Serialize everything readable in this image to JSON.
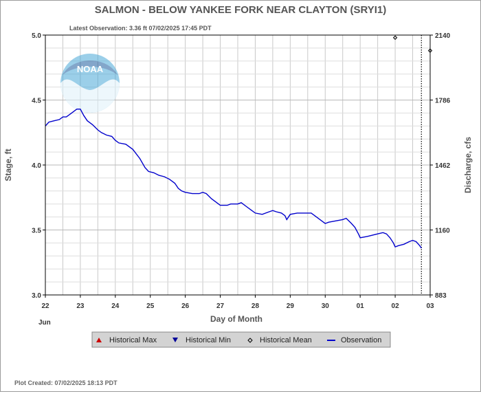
{
  "chart_data": {
    "type": "line",
    "title": "SALMON - BELOW YANKEE FORK NEAR CLAYTON  (SRYI1)",
    "subtitle": "Latest Observation: 3.36 ft 07/02/2025 17:45 PDT",
    "xlabel": "Day of Month",
    "ylabel": "Stage, ft",
    "y2label": "Discharge, cfs",
    "month_label": "Jun",
    "x_ticks": [
      "22",
      "23",
      "24",
      "25",
      "26",
      "27",
      "28",
      "29",
      "30",
      "01",
      "02",
      "03"
    ],
    "xlim_days": [
      0,
      11
    ],
    "ylim": [
      3.0,
      5.0
    ],
    "y_ticks": [
      "3.0",
      "3.5",
      "4.0",
      "4.5",
      "5.0"
    ],
    "y2_ticks": [
      "883",
      "1160",
      "1462",
      "1786",
      "2140"
    ],
    "grid": true,
    "forecast_line_day": 10.75,
    "series": [
      {
        "name": "Observation",
        "color": "#0000cc",
        "points": [
          [
            0.0,
            4.3
          ],
          [
            0.1,
            4.33
          ],
          [
            0.25,
            4.34
          ],
          [
            0.4,
            4.35
          ],
          [
            0.5,
            4.37
          ],
          [
            0.6,
            4.37
          ],
          [
            0.75,
            4.4
          ],
          [
            0.9,
            4.43
          ],
          [
            1.0,
            4.43
          ],
          [
            1.1,
            4.38
          ],
          [
            1.2,
            4.34
          ],
          [
            1.35,
            4.31
          ],
          [
            1.5,
            4.27
          ],
          [
            1.6,
            4.25
          ],
          [
            1.75,
            4.23
          ],
          [
            1.9,
            4.22
          ],
          [
            2.0,
            4.19
          ],
          [
            2.1,
            4.17
          ],
          [
            2.3,
            4.16
          ],
          [
            2.5,
            4.12
          ],
          [
            2.7,
            4.05
          ],
          [
            2.85,
            3.98
          ],
          [
            2.95,
            3.95
          ],
          [
            3.1,
            3.94
          ],
          [
            3.25,
            3.92
          ],
          [
            3.4,
            3.91
          ],
          [
            3.55,
            3.89
          ],
          [
            3.7,
            3.86
          ],
          [
            3.8,
            3.82
          ],
          [
            3.9,
            3.8
          ],
          [
            4.0,
            3.79
          ],
          [
            4.2,
            3.78
          ],
          [
            4.4,
            3.78
          ],
          [
            4.5,
            3.79
          ],
          [
            4.6,
            3.78
          ],
          [
            4.75,
            3.74
          ],
          [
            4.9,
            3.71
          ],
          [
            5.0,
            3.69
          ],
          [
            5.2,
            3.69
          ],
          [
            5.3,
            3.7
          ],
          [
            5.5,
            3.7
          ],
          [
            5.6,
            3.71
          ],
          [
            5.75,
            3.68
          ],
          [
            5.9,
            3.65
          ],
          [
            6.0,
            3.63
          ],
          [
            6.2,
            3.62
          ],
          [
            6.4,
            3.64
          ],
          [
            6.5,
            3.65
          ],
          [
            6.6,
            3.64
          ],
          [
            6.75,
            3.63
          ],
          [
            6.85,
            3.61
          ],
          [
            6.9,
            3.58
          ],
          [
            7.0,
            3.62
          ],
          [
            7.2,
            3.63
          ],
          [
            7.4,
            3.63
          ],
          [
            7.6,
            3.63
          ],
          [
            7.75,
            3.6
          ],
          [
            7.9,
            3.57
          ],
          [
            8.0,
            3.55
          ],
          [
            8.1,
            3.56
          ],
          [
            8.3,
            3.57
          ],
          [
            8.5,
            3.58
          ],
          [
            8.6,
            3.59
          ],
          [
            8.75,
            3.55
          ],
          [
            8.85,
            3.52
          ],
          [
            8.95,
            3.47
          ],
          [
            9.0,
            3.44
          ],
          [
            9.2,
            3.45
          ],
          [
            9.35,
            3.46
          ],
          [
            9.5,
            3.47
          ],
          [
            9.65,
            3.48
          ],
          [
            9.75,
            3.47
          ],
          [
            9.85,
            3.44
          ],
          [
            9.95,
            3.4
          ],
          [
            10.0,
            3.37
          ],
          [
            10.1,
            3.38
          ],
          [
            10.25,
            3.39
          ],
          [
            10.4,
            3.41
          ],
          [
            10.5,
            3.42
          ],
          [
            10.6,
            3.41
          ],
          [
            10.7,
            3.38
          ],
          [
            10.75,
            3.36
          ]
        ]
      },
      {
        "name": "Historical Mean",
        "color": "#000000",
        "points": [
          [
            10.0,
            4.98
          ],
          [
            11.0,
            4.88
          ]
        ]
      }
    ],
    "legend": {
      "placement": "bottom",
      "items": [
        {
          "label": "Historical Max",
          "symbol": "triangle-up",
          "color": "#cc0000"
        },
        {
          "label": "Historical Min",
          "symbol": "triangle-down",
          "color": "#000099"
        },
        {
          "label": "Historical Mean",
          "symbol": "diamond",
          "color": "#000000"
        },
        {
          "label": "Observation",
          "symbol": "line",
          "color": "#0000cc"
        }
      ]
    }
  },
  "footer": "Plot Created: 07/02/2025 18:13 PDT",
  "logo": {
    "text": "NOAA",
    "primary_color": "#4aa8d8",
    "accent_color": "#1e5fa0"
  }
}
